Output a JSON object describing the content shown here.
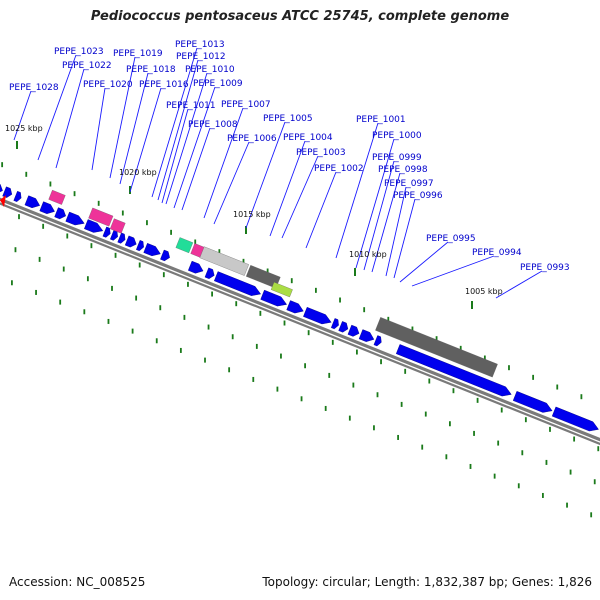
{
  "title": "Pediococcus pentosaceus ATCC 25745, complete genome",
  "footer": {
    "accession": "Accession: NC_008525",
    "summary": "Topology: circular; Length: 1,832,387 bp; Genes: 1,826"
  },
  "colors": {
    "gene": "#0000ee",
    "label": "#0000cc",
    "leader_line": "#1a1aff",
    "backbone": "#7a7a7a",
    "tick": "#1a7a1a",
    "magenta_feature": "#ee3399",
    "teal_feature": "#22dd99",
    "light_gray_feature": "#c8c8c8",
    "dark_gray_feature": "#606060",
    "lime_feature": "#aadd44",
    "origin_marker": "#ff0000"
  },
  "kbp_markers": [
    "1025 kbp",
    "1020 kbp",
    "1015 kbp",
    "1010 kbp",
    "1005 kbp"
  ],
  "gene_labels": [
    "PEPE_1028",
    "PEPE_1023",
    "PEPE_1022",
    "PEPE_1020",
    "PEPE_1019",
    "PEPE_1018",
    "PEPE_1016",
    "PEPE_1013",
    "PEPE_1012",
    "PEPE_1010",
    "PEPE_1009",
    "PEPE_1011",
    "PEPE_1008",
    "PEPE_1007",
    "PEPE_1006",
    "PEPE_1005",
    "PEPE_1004",
    "PEPE_1003",
    "PEPE_1002",
    "PEPE_1001",
    "PEPE_1000",
    "PEPE_0999",
    "PEPE_0998",
    "PEPE_0997",
    "PEPE_0996",
    "PEPE_0995",
    "PEPE_0994",
    "PEPE_0993"
  ]
}
